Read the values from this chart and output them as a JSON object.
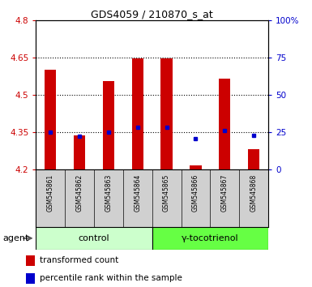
{
  "title": "GDS4059 / 210870_s_at",
  "samples": [
    "GSM545861",
    "GSM545862",
    "GSM545863",
    "GSM545864",
    "GSM545865",
    "GSM545866",
    "GSM545867",
    "GSM545868"
  ],
  "transformed_count": [
    4.6,
    4.335,
    4.555,
    4.645,
    4.645,
    4.215,
    4.565,
    4.28
  ],
  "percentile_rank": [
    25,
    22,
    25,
    28,
    28,
    20.5,
    26,
    22.5
  ],
  "y_min": 4.2,
  "y_max": 4.8,
  "y_ticks_left": [
    4.2,
    4.35,
    4.5,
    4.65,
    4.8
  ],
  "y_ticks_right": [
    0,
    25,
    50,
    75,
    100
  ],
  "groups": [
    {
      "label": "control",
      "indices": [
        0,
        1,
        2,
        3
      ],
      "color": "#ccffcc"
    },
    {
      "label": "γ-tocotrienol",
      "indices": [
        4,
        5,
        6,
        7
      ],
      "color": "#66ff44"
    }
  ],
  "bar_color": "#cc0000",
  "dot_color": "#0000cc",
  "bar_width": 0.4,
  "grid_color": "#000000",
  "sample_box_color": "#d0d0d0",
  "plot_bg": "#ffffff",
  "left_tick_color": "#cc0000",
  "right_tick_color": "#0000cc",
  "legend_bar_label": "transformed count",
  "legend_dot_label": "percentile rank within the sample",
  "agent_label": "agent",
  "gridlines_at": [
    4.35,
    4.5,
    4.65
  ]
}
